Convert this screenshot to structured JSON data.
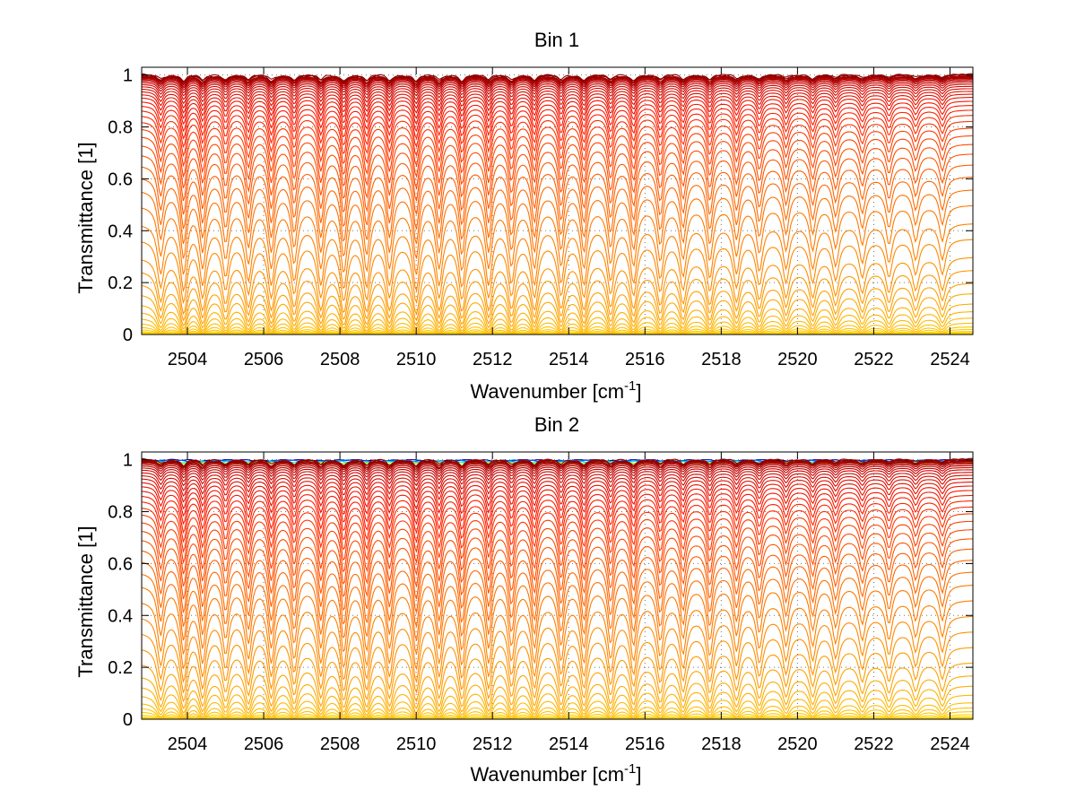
{
  "chart_data": [
    {
      "type": "line",
      "title": "Bin 1",
      "xlabel": "Wavenumber [cm",
      "xlabel_sup": "-1",
      "xlabel_tail": "]",
      "ylabel": "Transmittance [1]",
      "xlim": [
        2502.8,
        2524.6
      ],
      "ylim": [
        0,
        1.03
      ],
      "xticks": [
        2504,
        2506,
        2508,
        2510,
        2512,
        2514,
        2516,
        2518,
        2520,
        2522,
        2524
      ],
      "yticks": [
        0,
        0.2,
        0.4,
        0.6,
        0.8,
        1
      ],
      "ytick_labels": [
        "0",
        "0.2",
        "0.4",
        "0.6",
        "0.8",
        "1"
      ],
      "grid": true,
      "line_centers": [
        2503.3,
        2503.9,
        2504.4,
        2505.0,
        2505.6,
        2506.2,
        2506.8,
        2507.5,
        2508.1,
        2508.7,
        2509.3,
        2510.0,
        2510.6,
        2511.2,
        2511.9,
        2512.5,
        2513.1,
        2513.8,
        2514.4,
        2515.1,
        2515.7,
        2516.4,
        2517.0,
        2517.7,
        2518.4,
        2519.0,
        2519.7,
        2520.4,
        2521.0,
        2521.7,
        2522.4,
        2523.1,
        2523.8
      ],
      "line_strengths": [
        0.75,
        1.15,
        1.0,
        0.8,
        0.9,
        1.0,
        0.9,
        1.0,
        1.1,
        1.05,
        1.0,
        1.15,
        1.0,
        1.05,
        1.0,
        0.95,
        1.0,
        0.95,
        1.0,
        0.9,
        0.95,
        0.85,
        0.8,
        0.85,
        0.75,
        0.7,
        0.65,
        0.65,
        0.6,
        0.55,
        0.55,
        0.5,
        0.5
      ],
      "series_baselines": [
        1.0,
        0.999,
        0.998,
        0.997,
        0.995,
        0.993,
        0.99,
        0.987,
        0.983,
        0.978,
        0.972,
        0.965,
        0.957,
        0.948,
        0.938,
        0.927,
        0.915,
        0.9,
        0.884,
        0.866,
        0.846,
        0.823,
        0.797,
        0.768,
        0.735,
        0.698,
        0.656,
        0.61,
        0.56,
        0.5,
        0.43,
        0.37,
        0.3,
        0.25,
        0.2,
        0.16,
        0.12,
        0.09,
        0.065,
        0.045,
        0.03,
        0.02,
        0.012,
        0.008,
        0.005,
        0.003
      ],
      "color_scale": [
        "#8b0000",
        "#c00000",
        "#ff1a00",
        "#ff6a00",
        "#ffb000",
        "#ffe000"
      ]
    },
    {
      "type": "line",
      "title": "Bin 2",
      "xlabel": "Wavenumber [cm",
      "xlabel_sup": "-1",
      "xlabel_tail": "]",
      "ylabel": "Transmittance [1]",
      "xlim": [
        2502.8,
        2524.6
      ],
      "ylim": [
        0,
        1.03
      ],
      "xticks": [
        2504,
        2506,
        2508,
        2510,
        2512,
        2514,
        2516,
        2518,
        2520,
        2522,
        2524
      ],
      "yticks": [
        0,
        0.2,
        0.4,
        0.6,
        0.8,
        1
      ],
      "ytick_labels": [
        "0",
        "0.2",
        "0.4",
        "0.6",
        "0.8",
        "1"
      ],
      "grid": true,
      "line_centers": [
        2503.3,
        2503.9,
        2504.4,
        2505.0,
        2505.6,
        2506.2,
        2506.8,
        2507.5,
        2508.1,
        2508.7,
        2509.3,
        2510.0,
        2510.6,
        2511.2,
        2511.9,
        2512.5,
        2513.1,
        2513.8,
        2514.4,
        2515.1,
        2515.7,
        2516.4,
        2517.0,
        2517.7,
        2518.4,
        2519.0,
        2519.7,
        2520.4,
        2521.0,
        2521.7,
        2522.4,
        2523.1,
        2523.8
      ],
      "line_strengths": [
        0.75,
        1.15,
        1.0,
        0.8,
        0.9,
        1.0,
        0.9,
        1.0,
        1.1,
        1.05,
        1.0,
        1.15,
        1.0,
        1.05,
        1.0,
        0.95,
        1.0,
        0.95,
        1.0,
        0.9,
        0.95,
        0.85,
        0.8,
        0.85,
        0.75,
        0.7,
        0.65,
        0.65,
        0.6,
        0.55,
        0.55,
        0.5,
        0.5
      ],
      "series_baselines": [
        1.0,
        0.999,
        0.998,
        0.997,
        0.995,
        0.992,
        0.988,
        0.983,
        0.977,
        0.97,
        0.962,
        0.952,
        0.941,
        0.929,
        0.915,
        0.9,
        0.883,
        0.864,
        0.843,
        0.82,
        0.794,
        0.765,
        0.733,
        0.698,
        0.659,
        0.616,
        0.57,
        0.52,
        0.46,
        0.4,
        0.34,
        0.28,
        0.22,
        0.17,
        0.13,
        0.095,
        0.065,
        0.045,
        0.03,
        0.018,
        0.01,
        0.006,
        0.003
      ],
      "top_band_colors": [
        "#00008f",
        "#0060ff",
        "#00c0ff",
        "#40ff80",
        "#c0ff00"
      ],
      "color_scale": [
        "#8b0000",
        "#c00000",
        "#ff1a00",
        "#ff6a00",
        "#ffb000",
        "#ffe000"
      ]
    }
  ]
}
